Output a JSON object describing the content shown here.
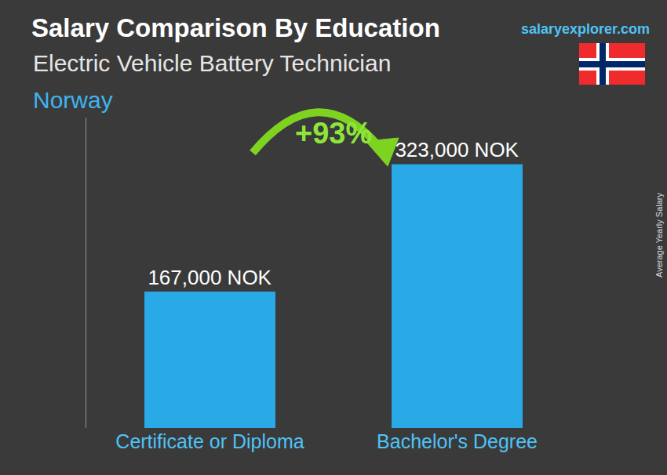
{
  "chart_data": {
    "type": "bar",
    "title": "Salary Comparison By Education",
    "subtitle": "Electric Vehicle Battery Technician",
    "location": "Norway",
    "source": "salaryexplorer.com",
    "y_label": "Average Yearly Salary",
    "categories": [
      "Certificate or Diploma",
      "Bachelor's Degree"
    ],
    "values": [
      167000,
      323000
    ],
    "value_labels": [
      "167,000 NOK",
      "323,000 NOK"
    ],
    "color": "#29a9e6",
    "ylim": [
      0,
      380000
    ],
    "yticks": [],
    "grid": false,
    "data_labels": true,
    "tick_labels": "x",
    "annotations": [
      {
        "text": "+93%",
        "from": "Certificate or Diploma",
        "to": "Bachelor's Degree"
      }
    ]
  }
}
